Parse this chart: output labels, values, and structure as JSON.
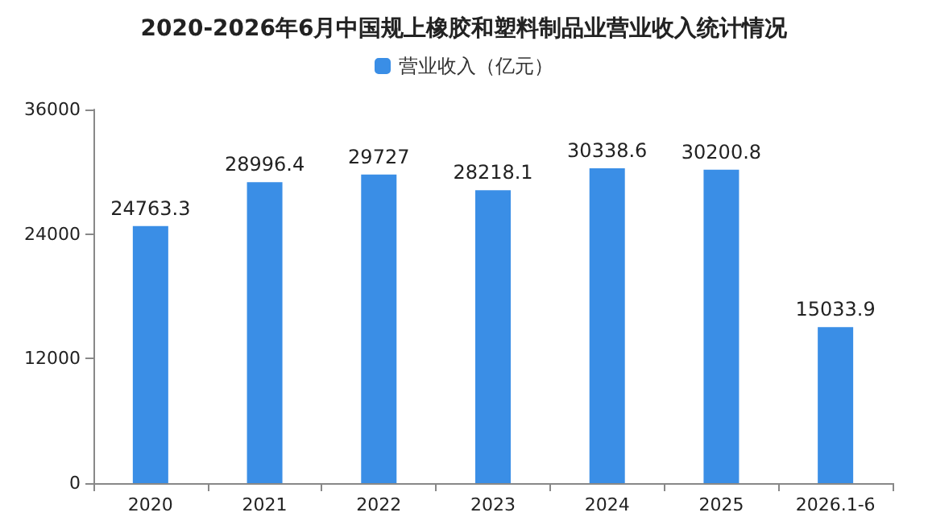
{
  "chart_data": {
    "type": "bar",
    "title": "2020-2026年6月中国规上橡胶和塑料制品业营业收入统计情况",
    "categories": [
      "2020",
      "2021",
      "2022",
      "2023",
      "2024",
      "2025",
      "2026.1-6"
    ],
    "series": [
      {
        "name": "营业收入（亿元）",
        "color": "#3a8ee6",
        "values": [
          24763.3,
          28996.4,
          29727,
          28218.1,
          30338.6,
          30200.8,
          15033.9
        ]
      }
    ],
    "ylim": [
      0,
      36000
    ],
    "yticks": [
      0,
      12000,
      24000,
      36000
    ],
    "grid": false,
    "legend": "top",
    "data_labels": true
  }
}
